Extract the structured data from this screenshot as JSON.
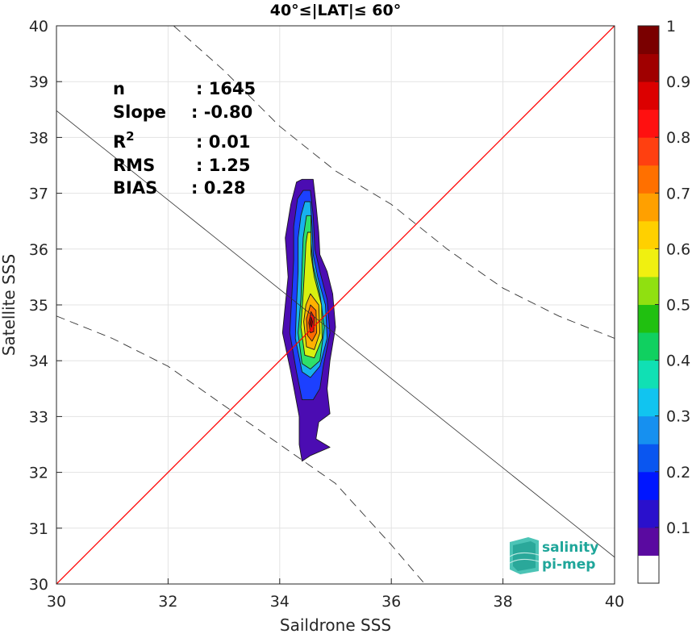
{
  "chart_data": {
    "type": "scatter",
    "title": "40°≤|LAT|≤ 60°",
    "xlabel": "Saildrone SSS",
    "ylabel": "Satellite SSS",
    "xlim": [
      30,
      40
    ],
    "ylim": [
      30,
      40
    ],
    "xticks": [
      "30",
      "32",
      "34",
      "36",
      "38",
      "40"
    ],
    "yticks": [
      "30",
      "31",
      "32",
      "33",
      "34",
      "35",
      "36",
      "37",
      "38",
      "39",
      "40"
    ],
    "grid": true,
    "stats": [
      {
        "label": "n",
        "value": ": 1645"
      },
      {
        "label": "Slope",
        "value": ": -0.80"
      },
      {
        "label": "R",
        "sup": "2",
        "value": ": 0.01"
      },
      {
        "label": "RMS",
        "value": ": 1.25"
      },
      {
        "label": "BIAS",
        "value": ": 0.28"
      }
    ],
    "identity_line": {
      "color": "#ff0000",
      "from": [
        30,
        30
      ],
      "to": [
        40,
        40
      ]
    },
    "fit_line": {
      "slope": -0.8,
      "from": [
        30,
        38.48
      ],
      "to": [
        40,
        30.48
      ]
    },
    "upper_dashed": {
      "points": [
        [
          32.1,
          40
        ],
        [
          33.0,
          39.2
        ],
        [
          34.0,
          38.2
        ],
        [
          35.0,
          37.4
        ],
        [
          36.0,
          36.8
        ],
        [
          37.0,
          36.0
        ],
        [
          38.0,
          35.3
        ],
        [
          39.0,
          34.8
        ],
        [
          40.0,
          34.4
        ]
      ]
    },
    "lower_dashed": {
      "points": [
        [
          30.0,
          34.8
        ],
        [
          31.0,
          34.4
        ],
        [
          32.0,
          33.9
        ],
        [
          33.0,
          33.2
        ],
        [
          34.0,
          32.5
        ],
        [
          35.0,
          31.8
        ],
        [
          36.0,
          30.7
        ],
        [
          36.6,
          30.0
        ]
      ]
    },
    "density_levels": [
      {
        "level": 0.05,
        "color": "#4b0cb2",
        "outline": [
          [
            34.4,
            37.25
          ],
          [
            34.6,
            37.25
          ],
          [
            34.65,
            36.8
          ],
          [
            34.7,
            36.3
          ],
          [
            34.72,
            35.9
          ],
          [
            34.85,
            35.6
          ],
          [
            34.95,
            35.2
          ],
          [
            35.0,
            34.6
          ],
          [
            34.9,
            34.0
          ],
          [
            34.85,
            33.5
          ],
          [
            34.9,
            33.05
          ],
          [
            34.7,
            32.9
          ],
          [
            34.65,
            32.6
          ],
          [
            34.9,
            32.45
          ],
          [
            34.55,
            32.3
          ],
          [
            34.4,
            32.2
          ],
          [
            34.35,
            32.5
          ],
          [
            34.35,
            33.0
          ],
          [
            34.2,
            33.8
          ],
          [
            34.05,
            34.5
          ],
          [
            34.1,
            35.0
          ],
          [
            34.15,
            35.5
          ],
          [
            34.1,
            36.2
          ],
          [
            34.2,
            36.8
          ],
          [
            34.3,
            37.2
          ]
        ]
      },
      {
        "level": 0.2,
        "color": "#1c40ff",
        "outline": [
          [
            34.42,
            37.05
          ],
          [
            34.55,
            37.05
          ],
          [
            34.6,
            36.6
          ],
          [
            34.63,
            36.0
          ],
          [
            34.72,
            35.6
          ],
          [
            34.85,
            35.1
          ],
          [
            34.9,
            34.5
          ],
          [
            34.78,
            33.9
          ],
          [
            34.72,
            33.5
          ],
          [
            34.6,
            33.3
          ],
          [
            34.4,
            33.3
          ],
          [
            34.3,
            33.8
          ],
          [
            34.18,
            34.5
          ],
          [
            34.22,
            35.2
          ],
          [
            34.25,
            35.8
          ],
          [
            34.25,
            36.4
          ],
          [
            34.32,
            36.9
          ]
        ]
      },
      {
        "level": 0.3,
        "color": "#17b1ee",
        "outline": [
          [
            34.45,
            36.85
          ],
          [
            34.55,
            36.85
          ],
          [
            34.58,
            36.4
          ],
          [
            34.6,
            35.9
          ],
          [
            34.68,
            35.5
          ],
          [
            34.82,
            35.0
          ],
          [
            34.85,
            34.4
          ],
          [
            34.72,
            33.9
          ],
          [
            34.55,
            33.7
          ],
          [
            34.4,
            33.8
          ],
          [
            34.28,
            34.4
          ],
          [
            34.3,
            35.0
          ],
          [
            34.33,
            35.6
          ],
          [
            34.33,
            36.2
          ],
          [
            34.38,
            36.6
          ]
        ]
      },
      {
        "level": 0.5,
        "color": "#2ee06a",
        "outline": [
          [
            34.48,
            36.6
          ],
          [
            34.56,
            36.6
          ],
          [
            34.56,
            36.1
          ],
          [
            34.6,
            35.7
          ],
          [
            34.72,
            35.2
          ],
          [
            34.8,
            34.6
          ],
          [
            34.72,
            34.0
          ],
          [
            34.55,
            33.85
          ],
          [
            34.4,
            33.95
          ],
          [
            34.33,
            34.5
          ],
          [
            34.38,
            35.1
          ],
          [
            34.4,
            35.7
          ],
          [
            34.42,
            36.2
          ]
        ]
      },
      {
        "level": 0.6,
        "color": "#d8f010",
        "outline": [
          [
            34.5,
            36.3
          ],
          [
            34.56,
            36.3
          ],
          [
            34.56,
            35.9
          ],
          [
            34.62,
            35.5
          ],
          [
            34.75,
            35.0
          ],
          [
            34.76,
            34.4
          ],
          [
            34.62,
            34.05
          ],
          [
            34.45,
            34.1
          ],
          [
            34.38,
            34.6
          ],
          [
            34.42,
            35.2
          ],
          [
            34.45,
            35.7
          ],
          [
            34.47,
            36.1
          ]
        ]
      },
      {
        "level": 0.7,
        "color": "#ffb200",
        "outline": [
          [
            34.55,
            35.2
          ],
          [
            34.7,
            35.0
          ],
          [
            34.72,
            34.5
          ],
          [
            34.62,
            34.2
          ],
          [
            34.48,
            34.25
          ],
          [
            34.43,
            34.7
          ],
          [
            34.47,
            35.0
          ]
        ]
      },
      {
        "level": 0.8,
        "color": "#ff6a00",
        "outline": [
          [
            34.55,
            35.0
          ],
          [
            34.65,
            34.9
          ],
          [
            34.66,
            34.5
          ],
          [
            34.58,
            34.35
          ],
          [
            34.5,
            34.45
          ],
          [
            34.48,
            34.75
          ]
        ]
      },
      {
        "level": 0.9,
        "color": "#ee0f0f",
        "outline": [
          [
            34.56,
            34.88
          ],
          [
            34.62,
            34.78
          ],
          [
            34.61,
            34.52
          ],
          [
            34.55,
            34.5
          ],
          [
            34.52,
            34.68
          ]
        ]
      },
      {
        "level": 1.0,
        "color": "#8c0000",
        "outline": [
          [
            34.56,
            34.78
          ],
          [
            34.59,
            34.7
          ],
          [
            34.57,
            34.6
          ],
          [
            34.54,
            34.66
          ]
        ]
      }
    ],
    "colorbar": {
      "ticks": [
        "0.1",
        "0.2",
        "0.3",
        "0.4",
        "0.5",
        "0.6",
        "0.7",
        "0.8",
        "0.9",
        "1"
      ],
      "colors": [
        "#ffffff",
        "#5a0aa0",
        "#2a10cc",
        "#0016ff",
        "#0a56f0",
        "#1690f0",
        "#11c4f0",
        "#10e0b4",
        "#10d060",
        "#20c010",
        "#90e010",
        "#f0f010",
        "#ffd000",
        "#ffa000",
        "#ff7000",
        "#ff4010",
        "#ff1010",
        "#dc0000",
        "#a00000",
        "#7a0000"
      ]
    },
    "logo": {
      "line1": "salinity",
      "line2": "pi-mep"
    }
  }
}
